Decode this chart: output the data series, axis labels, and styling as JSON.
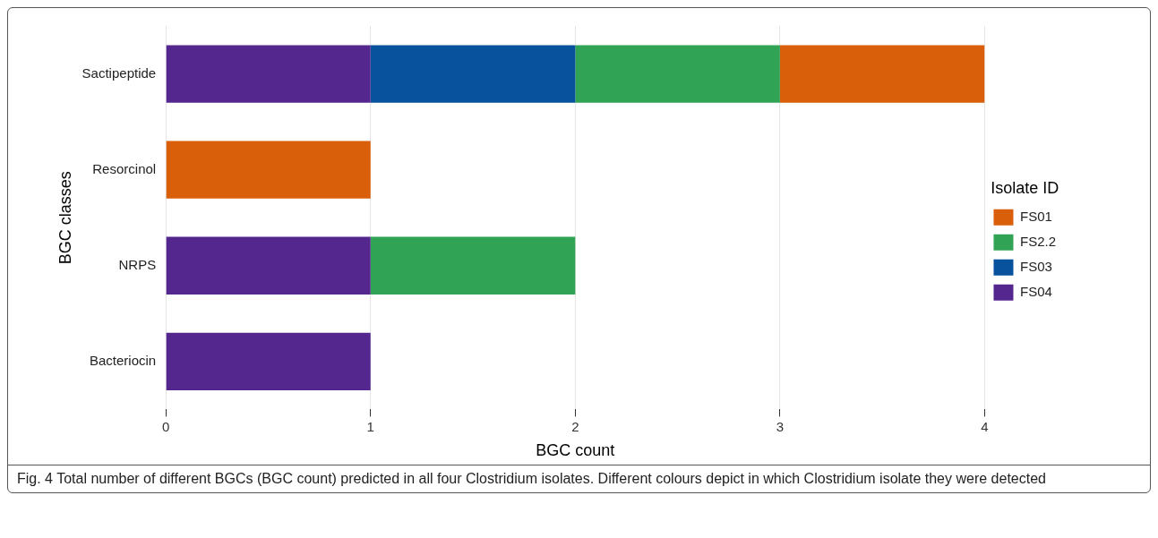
{
  "chart_data": {
    "type": "bar",
    "orientation": "horizontal",
    "stacked": true,
    "xlabel": "BGC count",
    "ylabel": "BGC classes",
    "legend_title": "Isolate ID",
    "legend": "right",
    "grid": "x",
    "categories": [
      "Sactipeptide",
      "Resorcinol",
      "NRPS",
      "Bacteriocin"
    ],
    "xlim": [
      0,
      4
    ],
    "xticks": [
      0,
      1,
      2,
      3,
      4
    ],
    "series": [
      {
        "name": "FS04",
        "color": "#54278f",
        "values": [
          1,
          null,
          1,
          1
        ]
      },
      {
        "name": "FS03",
        "color": "#08519c",
        "values": [
          1,
          null,
          null,
          null
        ]
      },
      {
        "name": "FS2.2",
        "color": "#31a354",
        "values": [
          1,
          null,
          1,
          null
        ]
      },
      {
        "name": "FS01",
        "color": "#d95f0b",
        "values": [
          1,
          1,
          null,
          null
        ]
      }
    ],
    "annotations": [
      "Fig. 4 Total number of different BGCs (BGC count) predicted in all four Clostridium isolates. Different colours depict in which Clostridium isolate they were detected"
    ]
  }
}
